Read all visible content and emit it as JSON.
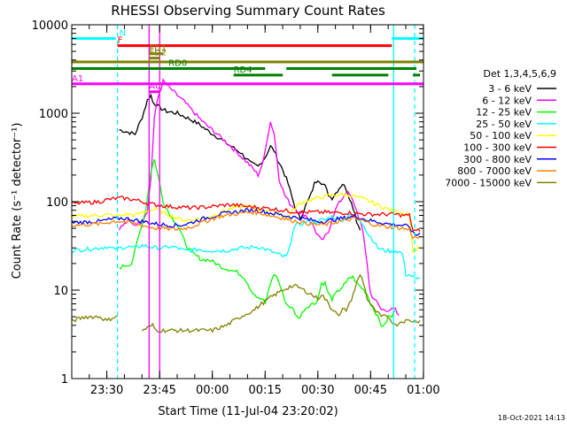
{
  "chart_data": {
    "type": "line",
    "title": "RHESSI Observing Summary Count Rates",
    "xlabel": "Start Time (11-Jul-04 23:20:02)",
    "ylabel": "Count Rate (s⁻¹ detector⁻¹)",
    "yscale": "log",
    "ylim": [
      1,
      10000
    ],
    "xlim_minutes": [
      0,
      100
    ],
    "x_tick_labels": [
      "23:30",
      "23:45",
      "00:00",
      "00:15",
      "00:30",
      "00:45",
      "01:00"
    ],
    "x_tick_minutes": [
      9.97,
      24.97,
      39.97,
      54.97,
      69.97,
      84.97,
      99.97
    ],
    "y_tick_labels": [
      "1",
      "10",
      "100",
      "1000",
      "10000"
    ],
    "y_tick_values": [
      1,
      10,
      100,
      1000,
      10000
    ],
    "legend_title": "Det 1,3,4,5,6,9",
    "legend_position": "right",
    "footer_date": "18-Oct-2021 14:13",
    "series": [
      {
        "name": "3 - 6 keV",
        "color": "#000000",
        "x": [
          0,
          13,
          13.5,
          18,
          20,
          21.5,
          22.5,
          23,
          24,
          25,
          27,
          30,
          33,
          36,
          39,
          42,
          45,
          48,
          51,
          53,
          55,
          56.5,
          57.5,
          58.5,
          60,
          61.5,
          63,
          64,
          65,
          66.5,
          68,
          69,
          70,
          72,
          73,
          74,
          75,
          77,
          78,
          79,
          80.5,
          81,
          82,
          82.5
        ],
        "y": [
          null,
          null,
          650,
          580,
          900,
          1400,
          1600,
          1350,
          1250,
          1150,
          1050,
          1000,
          880,
          760,
          620,
          520,
          430,
          360,
          270,
          250,
          320,
          420,
          380,
          300,
          230,
          160,
          100,
          75,
          65,
          90,
          120,
          160,
          180,
          150,
          120,
          110,
          125,
          160,
          140,
          110,
          75,
          60,
          48,
          null
        ]
      },
      {
        "name": "6 - 12 keV",
        "color": "#ff00ff",
        "x": [
          0,
          13,
          13.5,
          16,
          18,
          20,
          21.5,
          22.5,
          23.5,
          24.5,
          26,
          28,
          30,
          32,
          34,
          36,
          38,
          41,
          45,
          48,
          51,
          53,
          54.5,
          55.5,
          56.5,
          57.5,
          59,
          60.5,
          62,
          64,
          66.5,
          68,
          69.5,
          71,
          72,
          73,
          74,
          75.5,
          77,
          78,
          79,
          80.5,
          82,
          83,
          84,
          84.5,
          85,
          86,
          87,
          88,
          92,
          93
        ],
        "y": [
          null,
          null,
          50,
          60,
          55,
          60,
          80,
          180,
          900,
          1500,
          2300,
          1900,
          1600,
          1350,
          1100,
          900,
          750,
          600,
          430,
          330,
          250,
          200,
          290,
          500,
          800,
          600,
          180,
          120,
          95,
          80,
          70,
          60,
          45,
          36,
          40,
          45,
          65,
          90,
          110,
          130,
          120,
          90,
          60,
          40,
          20,
          12,
          9,
          8,
          7,
          6,
          6,
          5
        ]
      },
      {
        "name": "12 - 25 keV",
        "color": "#00ff00",
        "x": [
          0,
          13,
          13.5,
          17,
          19,
          21,
          22.5,
          23.5,
          24.5,
          26,
          28,
          30,
          31.5,
          33,
          35,
          37,
          39,
          41,
          43,
          45,
          47,
          49,
          50,
          51,
          52,
          53,
          54,
          55,
          56,
          57,
          58,
          59,
          60,
          61,
          62,
          63,
          64,
          65,
          66,
          67,
          68,
          69,
          70,
          71,
          72,
          73,
          74,
          75,
          76,
          77,
          78,
          79,
          80,
          81,
          82,
          83,
          84,
          85,
          86,
          87,
          88,
          89,
          90,
          91,
          92
        ],
        "y": [
          null,
          null,
          18,
          20,
          40,
          80,
          220,
          300,
          200,
          100,
          70,
          55,
          40,
          30,
          25,
          22,
          22,
          20,
          18,
          17,
          16,
          14,
          12,
          10,
          9,
          8,
          8,
          7,
          10,
          14,
          15,
          12,
          9,
          7,
          6.5,
          6,
          5,
          5,
          6,
          6.5,
          7,
          7,
          8,
          12,
          12,
          9,
          8,
          9,
          10,
          11,
          12,
          14,
          14,
          12,
          11,
          10,
          9,
          7,
          6,
          5,
          4,
          4,
          5,
          5,
          6
        ]
      },
      {
        "name": "25 - 50 keV",
        "color": "#00ffff",
        "x": [
          0,
          8,
          10,
          12,
          14,
          16,
          18,
          20,
          22,
          24,
          26,
          28,
          30,
          32,
          34,
          36,
          38,
          40,
          42,
          44,
          46,
          48,
          50,
          52,
          54,
          56,
          57,
          58,
          59,
          60,
          61,
          62,
          63,
          64,
          65,
          66,
          67,
          68,
          69,
          70,
          71,
          72,
          73,
          74,
          75,
          76,
          77,
          78,
          79,
          80,
          81,
          82,
          83,
          84,
          85,
          86,
          87,
          88,
          89,
          90,
          91,
          92,
          93,
          94,
          95,
          96,
          97,
          98,
          99
        ],
        "y": [
          28,
          30,
          31,
          29,
          30,
          31,
          30,
          32,
          31,
          30,
          30,
          31,
          30,
          28,
          28,
          29,
          28,
          28,
          28,
          28,
          29,
          30,
          30,
          31,
          30,
          28,
          27,
          26,
          25,
          24,
          24,
          30,
          50,
          55,
          55,
          57,
          60,
          58,
          58,
          60,
          62,
          62,
          65,
          68,
          65,
          64,
          62,
          65,
          72,
          68,
          64,
          62,
          55,
          44,
          40,
          35,
          30,
          29,
          28,
          28,
          27,
          28,
          27,
          26,
          15,
          15,
          14,
          13,
          14
        ]
      },
      {
        "name": "50 - 100 keV",
        "color": "#ffff00",
        "x": [
          0,
          8,
          10,
          12,
          14,
          16,
          18,
          20,
          22,
          24,
          26,
          28,
          30,
          32,
          34,
          36,
          38,
          40,
          42,
          44,
          46,
          48,
          50,
          52,
          54,
          56,
          58,
          60,
          61,
          62,
          63,
          64,
          66,
          68,
          70,
          72,
          74,
          76,
          78,
          80,
          82,
          84,
          86,
          88,
          90,
          92,
          94,
          96,
          97,
          99
        ],
        "y": [
          68,
          70,
          72,
          68,
          70,
          72,
          70,
          75,
          80,
          82,
          75,
          70,
          65,
          62,
          62,
          64,
          66,
          70,
          75,
          80,
          85,
          88,
          88,
          85,
          82,
          80,
          76,
          70,
          65,
          72,
          80,
          90,
          100,
          105,
          110,
          115,
          118,
          120,
          120,
          116,
          110,
          104,
          95,
          88,
          82,
          78,
          75,
          72,
          28,
          30
        ]
      },
      {
        "name": "100 - 300 keV",
        "color": "#ff0000",
        "x": [
          0,
          8,
          10,
          12,
          14,
          16,
          18,
          20,
          22,
          24,
          26,
          28,
          30,
          32,
          34,
          36,
          38,
          40,
          42,
          44,
          46,
          48,
          50,
          52,
          54,
          56,
          58,
          60,
          62,
          64,
          66,
          68,
          70,
          72,
          74,
          76,
          78,
          80,
          82,
          84,
          86,
          88,
          90,
          92,
          94,
          96,
          97,
          98,
          99
        ],
        "y": [
          95,
          100,
          105,
          108,
          110,
          108,
          105,
          100,
          95,
          92,
          90,
          88,
          87,
          86,
          85,
          86,
          87,
          88,
          90,
          92,
          92,
          90,
          88,
          87,
          85,
          84,
          82,
          80,
          78,
          77,
          76,
          76,
          76,
          76,
          75,
          75,
          75,
          74,
          73,
          72,
          72,
          72,
          72,
          72,
          70,
          70,
          48,
          46,
          48
        ]
      },
      {
        "name": "300 - 800 keV",
        "color": "#0000ff",
        "x": [
          0,
          8,
          10,
          12,
          14,
          16,
          18,
          20,
          22,
          24,
          26,
          28,
          30,
          32,
          34,
          36,
          38,
          40,
          42,
          44,
          46,
          48,
          50,
          52,
          54,
          56,
          58,
          60,
          62,
          64,
          66,
          68,
          70,
          72,
          74,
          76,
          78,
          80,
          82,
          84,
          86,
          88,
          90,
          92,
          94,
          96,
          97,
          98,
          99
        ],
        "y": [
          58,
          60,
          62,
          64,
          65,
          64,
          62,
          60,
          58,
          56,
          55,
          54,
          54,
          55,
          58,
          62,
          65,
          68,
          72,
          74,
          76,
          78,
          80,
          80,
          78,
          75,
          73,
          70,
          68,
          66,
          64,
          62,
          60,
          60,
          62,
          64,
          66,
          68,
          66,
          62,
          60,
          58,
          56,
          55,
          54,
          52,
          44,
          42,
          44
        ]
      },
      {
        "name": "800 - 7000 keV",
        "color": "#ff8000",
        "x": [
          0,
          8,
          10,
          12,
          14,
          16,
          18,
          20,
          22,
          24,
          26,
          28,
          30,
          32,
          34,
          36,
          38,
          40,
          42,
          44,
          46,
          48,
          50,
          52,
          54,
          56,
          58,
          60,
          62,
          64,
          66,
          68,
          70,
          72,
          74,
          76,
          78,
          80,
          82,
          84,
          86,
          88,
          90,
          92,
          94,
          96,
          97,
          98,
          99
        ],
        "y": [
          54,
          56,
          58,
          60,
          60,
          58,
          56,
          54,
          52,
          50,
          50,
          49,
          49,
          50,
          52,
          56,
          60,
          64,
          68,
          70,
          72,
          74,
          76,
          76,
          74,
          70,
          68,
          65,
          62,
          60,
          58,
          56,
          55,
          55,
          57,
          60,
          62,
          64,
          62,
          58,
          55,
          53,
          52,
          51,
          50,
          48,
          40,
          39,
          40
        ]
      },
      {
        "name": "7000 - 15000 keV",
        "color": "#808000",
        "x": [
          0,
          4,
          8,
          10,
          12,
          13,
          13.5,
          20,
          23,
          24,
          28,
          32,
          36,
          40,
          44,
          48,
          52,
          54,
          56,
          58,
          60,
          62,
          64,
          66,
          68,
          70,
          71,
          72,
          73,
          74,
          75,
          76,
          77,
          78,
          79,
          80,
          81,
          82,
          83,
          84,
          86,
          88,
          90,
          92,
          94,
          96,
          99
        ],
        "y": [
          4.5,
          5,
          5,
          4.5,
          5,
          5,
          null,
          3.5,
          4,
          3.5,
          3.5,
          3.5,
          3.5,
          3.5,
          4,
          5,
          6,
          7,
          8,
          9,
          10,
          11,
          11,
          10,
          9,
          8,
          9,
          8,
          7,
          6,
          6,
          5,
          6,
          6,
          7,
          9,
          12,
          15,
          12,
          8,
          6,
          5,
          5,
          4,
          4.5,
          4.5,
          4.5
        ]
      }
    ],
    "time_bars": [
      {
        "label": "N",
        "color": "#00ffff",
        "y": 7000,
        "segments": [
          [
            0,
            12.5
          ],
          [
            91,
            100
          ]
        ]
      },
      {
        "label": "F",
        "color": "#ff0000",
        "y": 5800,
        "segments": [
          [
            13,
            91
          ]
        ]
      },
      {
        "label": "FD1",
        "color": "#808000",
        "y": 4700,
        "segments": [
          [
            22,
            26
          ]
        ]
      },
      {
        "label": "FD2",
        "color": "#808000",
        "y": 4200,
        "segments": [
          [
            22,
            25
          ]
        ]
      },
      {
        "label": "",
        "color": "#808000",
        "y": 3800,
        "segments": [
          [
            0,
            100
          ]
        ]
      },
      {
        "label": "RD0",
        "color": "#008000",
        "y": 3200,
        "segments": [
          [
            0,
            55
          ],
          [
            61,
            98
          ]
        ]
      },
      {
        "label": "RD4",
        "color": "#008000",
        "y": 2700,
        "segments": [
          [
            46,
            60
          ],
          [
            74,
            90
          ],
          [
            97,
            99
          ]
        ]
      },
      {
        "label": "A1",
        "color": "#ff00ff",
        "y": 2150,
        "segments": [
          [
            0,
            100
          ]
        ]
      },
      {
        "label": "A0",
        "color": "#ff00ff",
        "y": 1750,
        "segments": [
          [
            22,
            25
          ]
        ]
      }
    ],
    "attenuator_lines": [
      {
        "color": "#00ffff",
        "style": "dashed",
        "x": 13
      },
      {
        "color": "#ff00ff",
        "style": "solid",
        "x": 22
      },
      {
        "color": "#ff00ff",
        "style": "solid",
        "x": 25
      },
      {
        "color": "#00ffff",
        "style": "solid",
        "x": 91.5
      },
      {
        "color": "#00ffff",
        "style": "dashed",
        "x": 97.5
      }
    ]
  }
}
